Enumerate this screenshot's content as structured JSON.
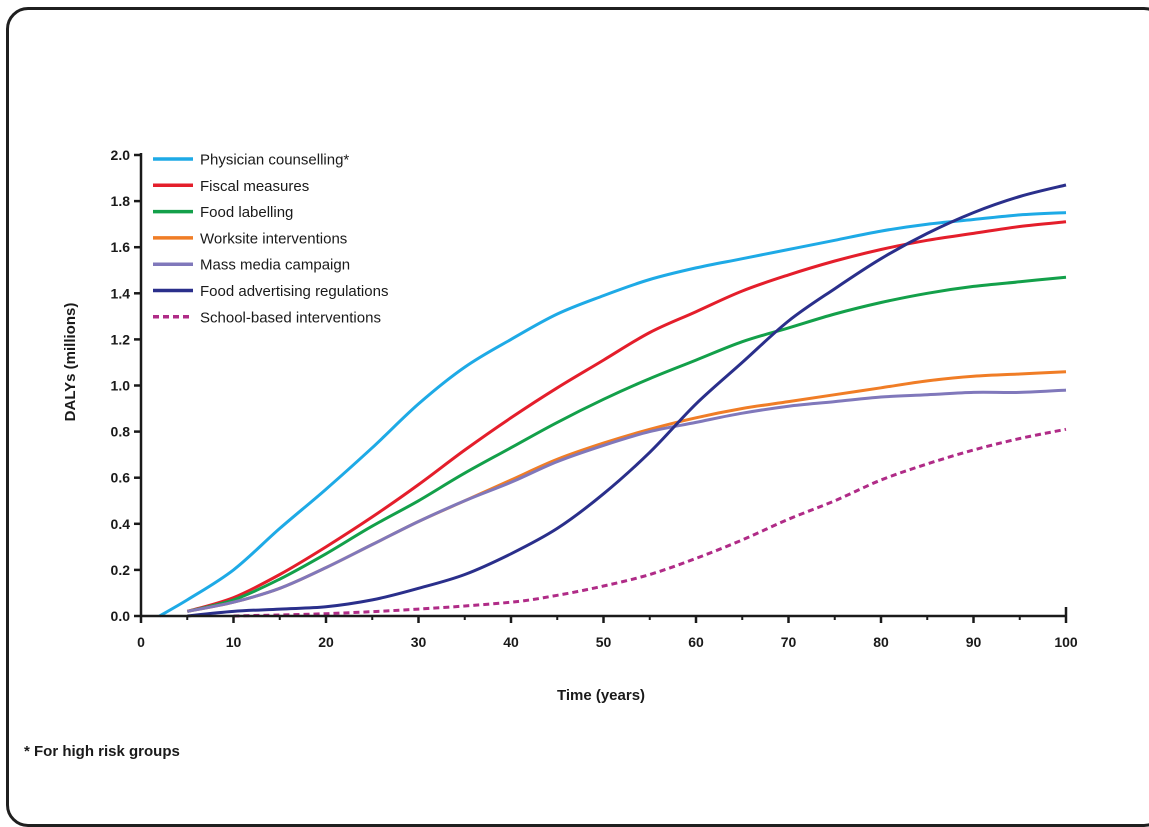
{
  "chart_data": {
    "type": "line",
    "xlabel": "Time (years)",
    "ylabel": "DALYs (millions)",
    "xlim": [
      0,
      100
    ],
    "ylim": [
      0,
      2.0
    ],
    "x_ticks": [
      "0",
      "10",
      "20",
      "30",
      "40",
      "50",
      "60",
      "70",
      "80",
      "90",
      "100"
    ],
    "y_ticks": [
      "0.0",
      "0.2",
      "0.4",
      "0.6",
      "0.8",
      "1.0",
      "1.2",
      "1.4",
      "1.6",
      "1.8",
      "2.0"
    ],
    "grid": false,
    "legend_position": "top-left",
    "series": [
      {
        "name": "Physician counselling*",
        "color": "#1eaae6",
        "dash": false,
        "x": [
          2,
          5,
          10,
          15,
          20,
          25,
          30,
          35,
          40,
          45,
          50,
          55,
          60,
          65,
          70,
          75,
          80,
          85,
          90,
          95,
          100
        ],
        "y": [
          0.0,
          0.07,
          0.2,
          0.38,
          0.55,
          0.73,
          0.92,
          1.08,
          1.2,
          1.31,
          1.39,
          1.46,
          1.51,
          1.55,
          1.59,
          1.63,
          1.67,
          1.7,
          1.72,
          1.74,
          1.75
        ]
      },
      {
        "name": "Fiscal measures",
        "color": "#e41e2b",
        "dash": false,
        "x": [
          5,
          10,
          15,
          20,
          25,
          30,
          35,
          40,
          45,
          50,
          55,
          60,
          65,
          70,
          75,
          80,
          85,
          90,
          95,
          100
        ],
        "y": [
          0.02,
          0.08,
          0.18,
          0.3,
          0.43,
          0.57,
          0.72,
          0.86,
          0.99,
          1.11,
          1.23,
          1.32,
          1.41,
          1.48,
          1.54,
          1.59,
          1.63,
          1.66,
          1.69,
          1.71
        ]
      },
      {
        "name": "Food labelling",
        "color": "#13a04a",
        "dash": false,
        "x": [
          5,
          10,
          15,
          20,
          25,
          30,
          35,
          40,
          45,
          50,
          55,
          60,
          65,
          70,
          75,
          80,
          85,
          90,
          95,
          100
        ],
        "y": [
          0.02,
          0.07,
          0.16,
          0.27,
          0.39,
          0.5,
          0.62,
          0.73,
          0.84,
          0.94,
          1.03,
          1.11,
          1.19,
          1.25,
          1.31,
          1.36,
          1.4,
          1.43,
          1.45,
          1.47
        ]
      },
      {
        "name": "Worksite interventions",
        "color": "#f07d26",
        "dash": false,
        "x": [
          5,
          10,
          15,
          20,
          25,
          30,
          35,
          40,
          45,
          50,
          55,
          60,
          65,
          70,
          75,
          80,
          85,
          90,
          95,
          100
        ],
        "y": [
          0.02,
          0.06,
          0.12,
          0.21,
          0.31,
          0.41,
          0.5,
          0.59,
          0.68,
          0.75,
          0.81,
          0.86,
          0.9,
          0.93,
          0.96,
          0.99,
          1.02,
          1.04,
          1.05,
          1.06
        ]
      },
      {
        "name": "Mass media campaign",
        "color": "#8078bb",
        "dash": false,
        "x": [
          5,
          10,
          15,
          20,
          25,
          30,
          35,
          40,
          45,
          50,
          55,
          60,
          65,
          70,
          75,
          80,
          85,
          90,
          95,
          100
        ],
        "y": [
          0.02,
          0.06,
          0.12,
          0.21,
          0.31,
          0.41,
          0.5,
          0.58,
          0.67,
          0.74,
          0.8,
          0.84,
          0.88,
          0.91,
          0.93,
          0.95,
          0.96,
          0.97,
          0.97,
          0.98
        ]
      },
      {
        "name": "Food advertising regulations",
        "color": "#2a2f8b",
        "dash": false,
        "x": [
          5,
          10,
          15,
          20,
          25,
          30,
          35,
          40,
          45,
          50,
          55,
          60,
          65,
          70,
          75,
          80,
          85,
          90,
          95,
          100
        ],
        "y": [
          0.0,
          0.02,
          0.03,
          0.04,
          0.07,
          0.12,
          0.18,
          0.27,
          0.38,
          0.53,
          0.71,
          0.92,
          1.1,
          1.28,
          1.42,
          1.55,
          1.66,
          1.75,
          1.82,
          1.87
        ]
      },
      {
        "name": "School-based interventions",
        "color": "#b02b87",
        "dash": true,
        "x": [
          10,
          20,
          30,
          40,
          45,
          50,
          55,
          60,
          65,
          70,
          75,
          80,
          85,
          90,
          95,
          100
        ],
        "y": [
          0.0,
          0.01,
          0.03,
          0.06,
          0.09,
          0.13,
          0.18,
          0.25,
          0.33,
          0.42,
          0.5,
          0.59,
          0.66,
          0.72,
          0.77,
          0.81
        ]
      }
    ]
  },
  "footnote": "* For high risk groups"
}
